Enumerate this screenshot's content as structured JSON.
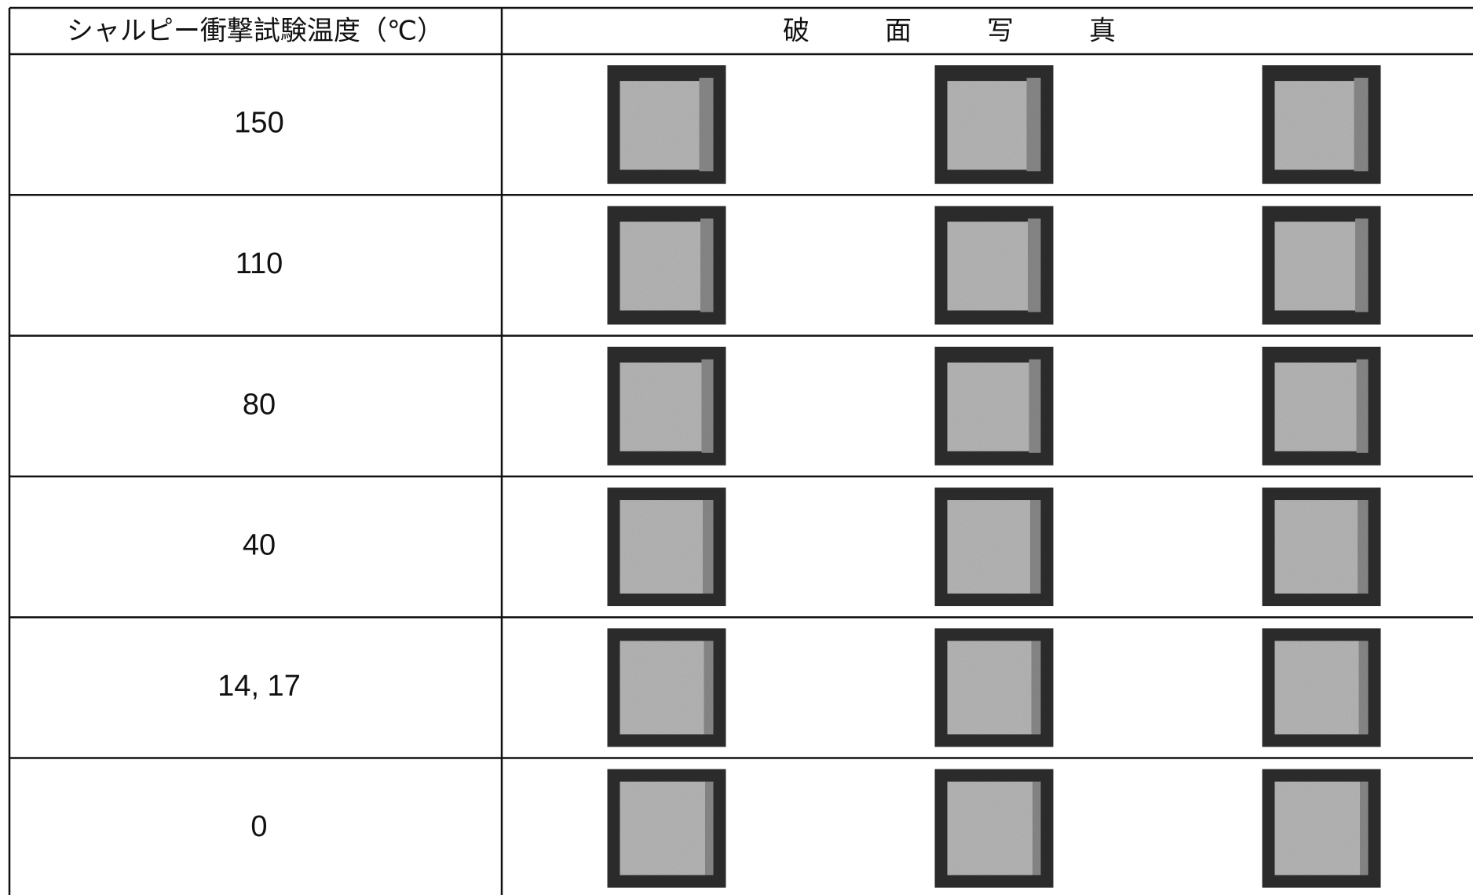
{
  "header": {
    "temperature": "シャルピー衝撃試験温度（℃）",
    "photos": "破面写真"
  },
  "table": {
    "rows": [
      "150",
      "110",
      "80",
      "40",
      "14, 17",
      "0"
    ]
  }
}
